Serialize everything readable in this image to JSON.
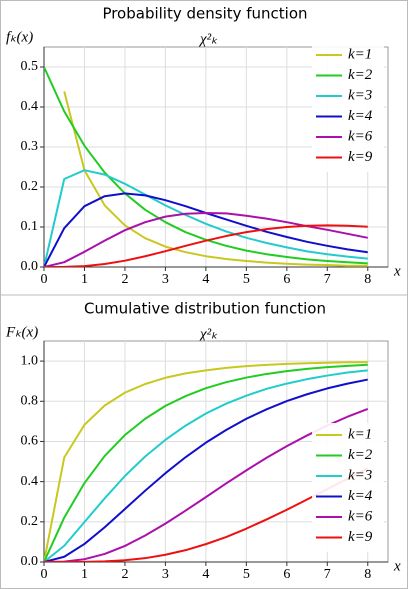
{
  "chart_data": [
    {
      "type": "line",
      "title": "Probability density function",
      "subtitle": "χ²ₖ",
      "ylabel": "fₖ(x)",
      "xlabel": "x",
      "x": [
        0,
        0.5,
        1,
        1.5,
        2,
        2.5,
        3,
        3.5,
        4,
        4.5,
        5,
        5.5,
        6,
        6.5,
        7,
        7.5,
        8
      ],
      "series": [
        {
          "name": "k=1",
          "color": "#c8c820",
          "values": [
            null,
            0.439,
            0.242,
            0.154,
            0.104,
            0.072,
            0.051,
            0.037,
            0.027,
            0.02,
            0.015,
            0.011,
            0.008,
            0.006,
            0.005,
            0.003,
            0.003
          ]
        },
        {
          "name": "k=2",
          "color": "#22cc22",
          "values": [
            0.5,
            0.389,
            0.303,
            0.236,
            0.184,
            0.143,
            0.112,
            0.087,
            0.068,
            0.053,
            0.041,
            0.032,
            0.025,
            0.019,
            0.015,
            0.012,
            0.009
          ]
        },
        {
          "name": "k=3",
          "color": "#22cccc",
          "values": [
            0,
            0.22,
            0.242,
            0.231,
            0.208,
            0.181,
            0.154,
            0.13,
            0.108,
            0.089,
            0.073,
            0.06,
            0.049,
            0.039,
            0.032,
            0.026,
            0.021
          ]
        },
        {
          "name": "k=4",
          "color": "#1010cc",
          "values": [
            0,
            0.097,
            0.152,
            0.177,
            0.184,
            0.179,
            0.167,
            0.152,
            0.135,
            0.119,
            0.103,
            0.088,
            0.075,
            0.063,
            0.053,
            0.044,
            0.037
          ]
        },
        {
          "name": "k=6",
          "color": "#aa10aa",
          "values": [
            0,
            0.012,
            0.038,
            0.066,
            0.092,
            0.112,
            0.126,
            0.133,
            0.135,
            0.134,
            0.128,
            0.121,
            0.112,
            0.102,
            0.093,
            0.083,
            0.073
          ]
        },
        {
          "name": "k=9",
          "color": "#ee1010",
          "values": [
            0,
            0.0003,
            0.0023,
            0.0074,
            0.0158,
            0.0269,
            0.0396,
            0.053,
            0.0658,
            0.0774,
            0.0872,
            0.0947,
            0.1001,
            0.1032,
            0.1041,
            0.1032,
            0.1007
          ]
        }
      ],
      "xlim": [
        0,
        8.5
      ],
      "ylim": [
        0,
        0.55
      ],
      "xticks": [
        0,
        1,
        2,
        3,
        4,
        5,
        6,
        7,
        8
      ],
      "yticks": [
        {
          "value": 0,
          "label": "0.0"
        },
        {
          "value": 0.1,
          "label": "0.1"
        },
        {
          "value": 0.2,
          "label": "0.2"
        },
        {
          "value": 0.3,
          "label": "0.3"
        },
        {
          "value": 0.4,
          "label": "0.4"
        },
        {
          "value": 0.5,
          "label": "0.5"
        }
      ],
      "grid": true,
      "legend": "upper right"
    },
    {
      "type": "line",
      "title": "Cumulative distribution function",
      "subtitle": "χ²ₖ",
      "ylabel": "Fₖ(x)",
      "xlabel": "x",
      "x": [
        0,
        0.5,
        1,
        1.5,
        2,
        2.5,
        3,
        3.5,
        4,
        4.5,
        5,
        5.5,
        6,
        6.5,
        7,
        7.5,
        8
      ],
      "series": [
        {
          "name": "k=1",
          "color": "#c8c820",
          "values": [
            0,
            0.52,
            0.683,
            0.779,
            0.843,
            0.886,
            0.917,
            0.939,
            0.954,
            0.966,
            0.975,
            0.981,
            0.986,
            0.989,
            0.992,
            0.994,
            0.995
          ]
        },
        {
          "name": "k=2",
          "color": "#22cc22",
          "values": [
            0,
            0.221,
            0.393,
            0.528,
            0.632,
            0.713,
            0.777,
            0.826,
            0.865,
            0.895,
            0.918,
            0.936,
            0.95,
            0.961,
            0.97,
            0.976,
            0.982
          ]
        },
        {
          "name": "k=3",
          "color": "#22cccc",
          "values": [
            0,
            0.081,
            0.199,
            0.317,
            0.428,
            0.525,
            0.608,
            0.679,
            0.739,
            0.788,
            0.828,
            0.862,
            0.888,
            0.91,
            0.928,
            0.943,
            0.954
          ]
        },
        {
          "name": "k=4",
          "color": "#1010cc",
          "values": [
            0,
            0.026,
            0.09,
            0.173,
            0.264,
            0.355,
            0.442,
            0.522,
            0.594,
            0.657,
            0.713,
            0.76,
            0.801,
            0.835,
            0.864,
            0.888,
            0.908
          ]
        },
        {
          "name": "k=6",
          "color": "#aa10aa",
          "values": [
            0,
            0.002,
            0.014,
            0.04,
            0.08,
            0.132,
            0.191,
            0.256,
            0.323,
            0.391,
            0.456,
            0.519,
            0.577,
            0.63,
            0.679,
            0.723,
            0.762
          ]
        },
        {
          "name": "k=9",
          "color": "#ee1010",
          "values": [
            0,
            0,
            0.0006,
            0.003,
            0.009,
            0.019,
            0.036,
            0.059,
            0.089,
            0.124,
            0.166,
            0.212,
            0.26,
            0.311,
            0.363,
            0.414,
            0.466
          ]
        }
      ],
      "xlim": [
        0,
        8.5
      ],
      "ylim": [
        0,
        1.1
      ],
      "xticks": [
        0,
        1,
        2,
        3,
        4,
        5,
        6,
        7,
        8
      ],
      "yticks": [
        {
          "value": 0,
          "label": "0.0"
        },
        {
          "value": 0.2,
          "label": "0.2"
        },
        {
          "value": 0.4,
          "label": "0.4"
        },
        {
          "value": 0.6,
          "label": "0.6"
        },
        {
          "value": 0.8,
          "label": "0.8"
        },
        {
          "value": 1.0,
          "label": "1.0"
        }
      ],
      "grid": true,
      "legend": "lower right"
    }
  ]
}
